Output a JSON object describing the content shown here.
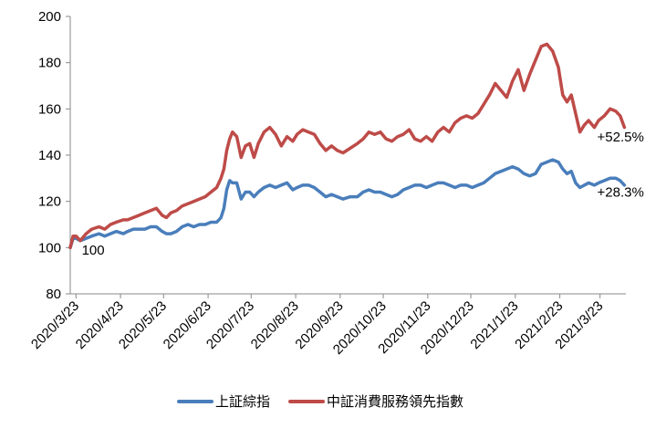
{
  "chart_data": {
    "type": "line",
    "title": "",
    "xlabel": "",
    "ylabel": "",
    "ylim": [
      80,
      200
    ],
    "yticks": [
      80,
      100,
      120,
      140,
      160,
      180,
      200
    ],
    "xticks": [
      "2020/3/23",
      "2020/4/23",
      "2020/5/23",
      "2020/6/23",
      "2020/7/23",
      "2020/8/23",
      "2020/9/23",
      "2020/10/23",
      "2020/11/23",
      "2020/12/23",
      "2021/1/23",
      "2021/2/23",
      "2021/3/23"
    ],
    "legend_position": "bottom",
    "grid": false,
    "series": [
      {
        "name": "上証綜指",
        "color": "#4a7ebb",
        "points": [
          [
            "2020-03-19",
            100
          ],
          [
            "2020-03-21",
            104
          ],
          [
            "2020-03-23",
            104
          ],
          [
            "2020-03-26",
            103
          ],
          [
            "2020-03-30",
            104
          ],
          [
            "2020-04-03",
            105
          ],
          [
            "2020-04-08",
            106
          ],
          [
            "2020-04-12",
            105
          ],
          [
            "2020-04-16",
            106
          ],
          [
            "2020-04-20",
            107
          ],
          [
            "2020-04-25",
            106
          ],
          [
            "2020-04-28",
            107
          ],
          [
            "2020-05-02",
            108
          ],
          [
            "2020-05-06",
            108
          ],
          [
            "2020-05-10",
            108
          ],
          [
            "2020-05-14",
            109
          ],
          [
            "2020-05-18",
            109
          ],
          [
            "2020-05-22",
            107
          ],
          [
            "2020-05-25",
            106
          ],
          [
            "2020-05-28",
            106
          ],
          [
            "2020-06-01",
            107
          ],
          [
            "2020-06-05",
            109
          ],
          [
            "2020-06-09",
            110
          ],
          [
            "2020-06-13",
            109
          ],
          [
            "2020-06-17",
            110
          ],
          [
            "2020-06-21",
            110
          ],
          [
            "2020-06-25",
            111
          ],
          [
            "2020-06-29",
            111
          ],
          [
            "2020-07-02",
            113
          ],
          [
            "2020-07-04",
            117
          ],
          [
            "2020-07-06",
            125
          ],
          [
            "2020-07-08",
            129
          ],
          [
            "2020-07-10",
            128
          ],
          [
            "2020-07-13",
            128
          ],
          [
            "2020-07-16",
            121
          ],
          [
            "2020-07-19",
            124
          ],
          [
            "2020-07-22",
            124
          ],
          [
            "2020-07-25",
            122
          ],
          [
            "2020-07-28",
            124
          ],
          [
            "2020-08-01",
            126
          ],
          [
            "2020-08-05",
            127
          ],
          [
            "2020-08-09",
            126
          ],
          [
            "2020-08-13",
            127
          ],
          [
            "2020-08-17",
            128
          ],
          [
            "2020-08-21",
            125
          ],
          [
            "2020-08-24",
            126
          ],
          [
            "2020-08-28",
            127
          ],
          [
            "2020-09-01",
            127
          ],
          [
            "2020-09-05",
            126
          ],
          [
            "2020-09-09",
            124
          ],
          [
            "2020-09-13",
            122
          ],
          [
            "2020-09-17",
            123
          ],
          [
            "2020-09-21",
            122
          ],
          [
            "2020-09-25",
            121
          ],
          [
            "2020-09-30",
            122
          ],
          [
            "2020-10-05",
            122
          ],
          [
            "2020-10-09",
            124
          ],
          [
            "2020-10-13",
            125
          ],
          [
            "2020-10-17",
            124
          ],
          [
            "2020-10-21",
            124
          ],
          [
            "2020-10-25",
            123
          ],
          [
            "2020-10-29",
            122
          ],
          [
            "2020-11-02",
            123
          ],
          [
            "2020-11-06",
            125
          ],
          [
            "2020-11-10",
            126
          ],
          [
            "2020-11-14",
            127
          ],
          [
            "2020-11-18",
            127
          ],
          [
            "2020-11-22",
            126
          ],
          [
            "2020-11-26",
            127
          ],
          [
            "2020-11-30",
            128
          ],
          [
            "2020-12-04",
            128
          ],
          [
            "2020-12-08",
            127
          ],
          [
            "2020-12-12",
            126
          ],
          [
            "2020-12-16",
            127
          ],
          [
            "2020-12-20",
            127
          ],
          [
            "2020-12-24",
            126
          ],
          [
            "2020-12-28",
            127
          ],
          [
            "2021-01-01",
            128
          ],
          [
            "2021-01-05",
            130
          ],
          [
            "2021-01-09",
            132
          ],
          [
            "2021-01-13",
            133
          ],
          [
            "2021-01-17",
            134
          ],
          [
            "2021-01-21",
            135
          ],
          [
            "2021-01-25",
            134
          ],
          [
            "2021-01-29",
            132
          ],
          [
            "2021-02-02",
            131
          ],
          [
            "2021-02-06",
            132
          ],
          [
            "2021-02-10",
            136
          ],
          [
            "2021-02-14",
            137
          ],
          [
            "2021-02-18",
            138
          ],
          [
            "2021-02-22",
            137
          ],
          [
            "2021-02-25",
            134
          ],
          [
            "2021-02-28",
            132
          ],
          [
            "2021-03-03",
            133
          ],
          [
            "2021-03-06",
            128
          ],
          [
            "2021-03-09",
            126
          ],
          [
            "2021-03-12",
            127
          ],
          [
            "2021-03-15",
            128
          ],
          [
            "2021-03-19",
            127
          ],
          [
            "2021-03-22",
            128
          ],
          [
            "2021-03-26",
            129
          ],
          [
            "2021-03-30",
            130
          ],
          [
            "2021-04-03",
            130
          ],
          [
            "2021-04-06",
            129
          ],
          [
            "2021-04-09",
            127
          ]
        ]
      },
      {
        "name": "中証消費服務領先指數",
        "color": "#be4b48",
        "points": [
          [
            "2020-03-19",
            100
          ],
          [
            "2020-03-21",
            105
          ],
          [
            "2020-03-23",
            105
          ],
          [
            "2020-03-26",
            103
          ],
          [
            "2020-03-30",
            106
          ],
          [
            "2020-04-03",
            108
          ],
          [
            "2020-04-08",
            109
          ],
          [
            "2020-04-12",
            108
          ],
          [
            "2020-04-16",
            110
          ],
          [
            "2020-04-20",
            111
          ],
          [
            "2020-04-25",
            112
          ],
          [
            "2020-04-28",
            112
          ],
          [
            "2020-05-02",
            113
          ],
          [
            "2020-05-06",
            114
          ],
          [
            "2020-05-10",
            115
          ],
          [
            "2020-05-14",
            116
          ],
          [
            "2020-05-18",
            117
          ],
          [
            "2020-05-22",
            114
          ],
          [
            "2020-05-25",
            113
          ],
          [
            "2020-05-28",
            115
          ],
          [
            "2020-06-01",
            116
          ],
          [
            "2020-06-05",
            118
          ],
          [
            "2020-06-09",
            119
          ],
          [
            "2020-06-13",
            120
          ],
          [
            "2020-06-17",
            121
          ],
          [
            "2020-06-21",
            122
          ],
          [
            "2020-06-25",
            124
          ],
          [
            "2020-06-29",
            126
          ],
          [
            "2020-07-02",
            130
          ],
          [
            "2020-07-04",
            134
          ],
          [
            "2020-07-06",
            142
          ],
          [
            "2020-07-08",
            147
          ],
          [
            "2020-07-10",
            150
          ],
          [
            "2020-07-13",
            148
          ],
          [
            "2020-07-16",
            139
          ],
          [
            "2020-07-19",
            144
          ],
          [
            "2020-07-22",
            145
          ],
          [
            "2020-07-25",
            139
          ],
          [
            "2020-07-28",
            145
          ],
          [
            "2020-08-01",
            150
          ],
          [
            "2020-08-05",
            152
          ],
          [
            "2020-08-09",
            149
          ],
          [
            "2020-08-13",
            144
          ],
          [
            "2020-08-17",
            148
          ],
          [
            "2020-08-21",
            146
          ],
          [
            "2020-08-24",
            149
          ],
          [
            "2020-08-28",
            151
          ],
          [
            "2020-09-01",
            150
          ],
          [
            "2020-09-05",
            149
          ],
          [
            "2020-09-09",
            145
          ],
          [
            "2020-09-13",
            142
          ],
          [
            "2020-09-17",
            144
          ],
          [
            "2020-09-21",
            142
          ],
          [
            "2020-09-25",
            141
          ],
          [
            "2020-09-30",
            143
          ],
          [
            "2020-10-05",
            145
          ],
          [
            "2020-10-09",
            147
          ],
          [
            "2020-10-13",
            150
          ],
          [
            "2020-10-17",
            149
          ],
          [
            "2020-10-21",
            150
          ],
          [
            "2020-10-25",
            147
          ],
          [
            "2020-10-29",
            146
          ],
          [
            "2020-11-02",
            148
          ],
          [
            "2020-11-06",
            149
          ],
          [
            "2020-11-10",
            151
          ],
          [
            "2020-11-14",
            147
          ],
          [
            "2020-11-18",
            146
          ],
          [
            "2020-11-22",
            148
          ],
          [
            "2020-11-26",
            146
          ],
          [
            "2020-11-30",
            150
          ],
          [
            "2020-12-04",
            152
          ],
          [
            "2020-12-08",
            150
          ],
          [
            "2020-12-12",
            154
          ],
          [
            "2020-12-16",
            156
          ],
          [
            "2020-12-20",
            157
          ],
          [
            "2020-12-24",
            156
          ],
          [
            "2020-12-28",
            158
          ],
          [
            "2021-01-01",
            162
          ],
          [
            "2021-01-05",
            166
          ],
          [
            "2021-01-09",
            171
          ],
          [
            "2021-01-13",
            168
          ],
          [
            "2021-01-17",
            165
          ],
          [
            "2021-01-21",
            172
          ],
          [
            "2021-01-25",
            177
          ],
          [
            "2021-01-29",
            168
          ],
          [
            "2021-02-02",
            175
          ],
          [
            "2021-02-06",
            181
          ],
          [
            "2021-02-10",
            187
          ],
          [
            "2021-02-14",
            188
          ],
          [
            "2021-02-18",
            185
          ],
          [
            "2021-02-22",
            178
          ],
          [
            "2021-02-25",
            166
          ],
          [
            "2021-02-28",
            163
          ],
          [
            "2021-03-03",
            166
          ],
          [
            "2021-03-06",
            158
          ],
          [
            "2021-03-09",
            150
          ],
          [
            "2021-03-12",
            153
          ],
          [
            "2021-03-15",
            155
          ],
          [
            "2021-03-19",
            152
          ],
          [
            "2021-03-22",
            155
          ],
          [
            "2021-03-26",
            157
          ],
          [
            "2021-03-30",
            160
          ],
          [
            "2021-04-03",
            159
          ],
          [
            "2021-04-06",
            157
          ],
          [
            "2021-04-09",
            152
          ]
        ]
      }
    ],
    "annotations": [
      {
        "text": "100",
        "x": "2020-03-27",
        "y": 97
      },
      {
        "text": "+52.5%",
        "x": "2021-03-21",
        "y": 146
      },
      {
        "text": "+28.3%",
        "x": "2021-03-21",
        "y": 122
      }
    ]
  }
}
